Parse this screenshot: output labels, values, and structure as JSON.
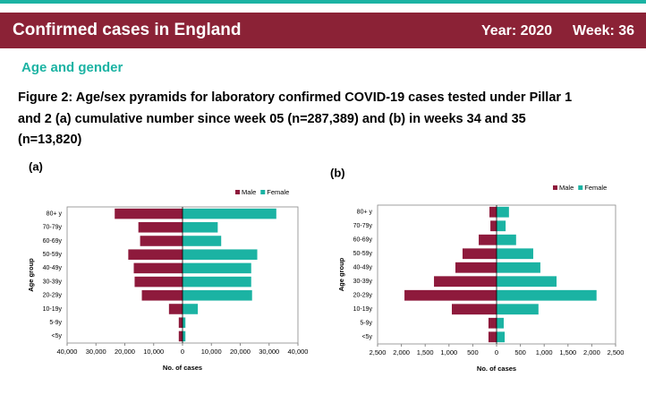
{
  "header": {
    "title": "Confirmed cases in England",
    "year": "Year: 2020",
    "week": "Week: 36"
  },
  "section": "Age and gender",
  "figure_caption": [
    "Figure 2: Age/sex pyramids for laboratory confirmed COVID-19 cases tested under Pillar 1",
    "and 2 (a) cumulative number since week 05 (n=287,389) and (b) in weeks 34 and 35",
    "(n=13,820)"
  ],
  "chart_data": [
    {
      "type": "pyramid",
      "label": "(a)",
      "ylabel": "Age group",
      "xlabel": "No. of cases",
      "categories": [
        "80+ y",
        "70-79y",
        "60-69y",
        "50-59y",
        "40-49y",
        "30-39y",
        "20-29y",
        "10-19y",
        "5-9y",
        "<5y"
      ],
      "series": [
        {
          "name": "Male",
          "color": "#8e1a3c",
          "side": "left",
          "values": [
            23500,
            15300,
            14700,
            18800,
            16900,
            16600,
            14100,
            4700,
            1300,
            1300
          ]
        },
        {
          "name": "Female",
          "color": "#1bb3a3",
          "side": "right",
          "values": [
            32500,
            12200,
            13400,
            25900,
            23800,
            23800,
            24100,
            5300,
            1000,
            1000
          ]
        }
      ],
      "xlim": [
        -40000,
        40000
      ],
      "xticks": [
        {
          "value": -40000,
          "label": "40,000"
        },
        {
          "value": -30000,
          "label": "30,000"
        },
        {
          "value": -20000,
          "label": "20,000"
        },
        {
          "value": -10000,
          "label": "10,000"
        },
        0,
        {
          "value": 10000,
          "label": "10,000"
        },
        {
          "value": 20000,
          "label": "20,000"
        },
        {
          "value": 30000,
          "label": "30,000"
        },
        {
          "value": 40000,
          "label": "40,000"
        }
      ],
      "legend": "top-right"
    },
    {
      "type": "pyramid",
      "label": "(b)",
      "ylabel": "Age group",
      "xlabel": "No. of cases",
      "categories": [
        "80+ y",
        "70-79y",
        "60-69y",
        "50-59y",
        "40-49y",
        "30-39y",
        "20-29y",
        "10-19y",
        "5-9y",
        "<5y"
      ],
      "series": [
        {
          "name": "Male",
          "color": "#8e1a3c",
          "side": "left",
          "values": [
            150,
            130,
            375,
            715,
            865,
            1315,
            1935,
            940,
            170,
            170
          ]
        },
        {
          "name": "Female",
          "color": "#1bb3a3",
          "side": "right",
          "values": [
            260,
            190,
            410,
            770,
            920,
            1260,
            2100,
            880,
            150,
            170
          ]
        }
      ],
      "xlim": [
        -2500,
        2500
      ],
      "xticks": [
        {
          "value": -2500,
          "label": "2,500"
        },
        {
          "value": -2000,
          "label": "2,000"
        },
        {
          "value": -1500,
          "label": "1,500"
        },
        {
          "value": -1000,
          "label": "1,000"
        },
        {
          "value": -500,
          "label": "500"
        },
        0,
        {
          "value": 500,
          "label": "500"
        },
        {
          "value": 1000,
          "label": "1,000"
        },
        {
          "value": 1500,
          "label": "1,500"
        },
        {
          "value": 2000,
          "label": "2,000"
        },
        {
          "value": 2500,
          "label": "2,500"
        }
      ],
      "legend": "top-right"
    }
  ]
}
